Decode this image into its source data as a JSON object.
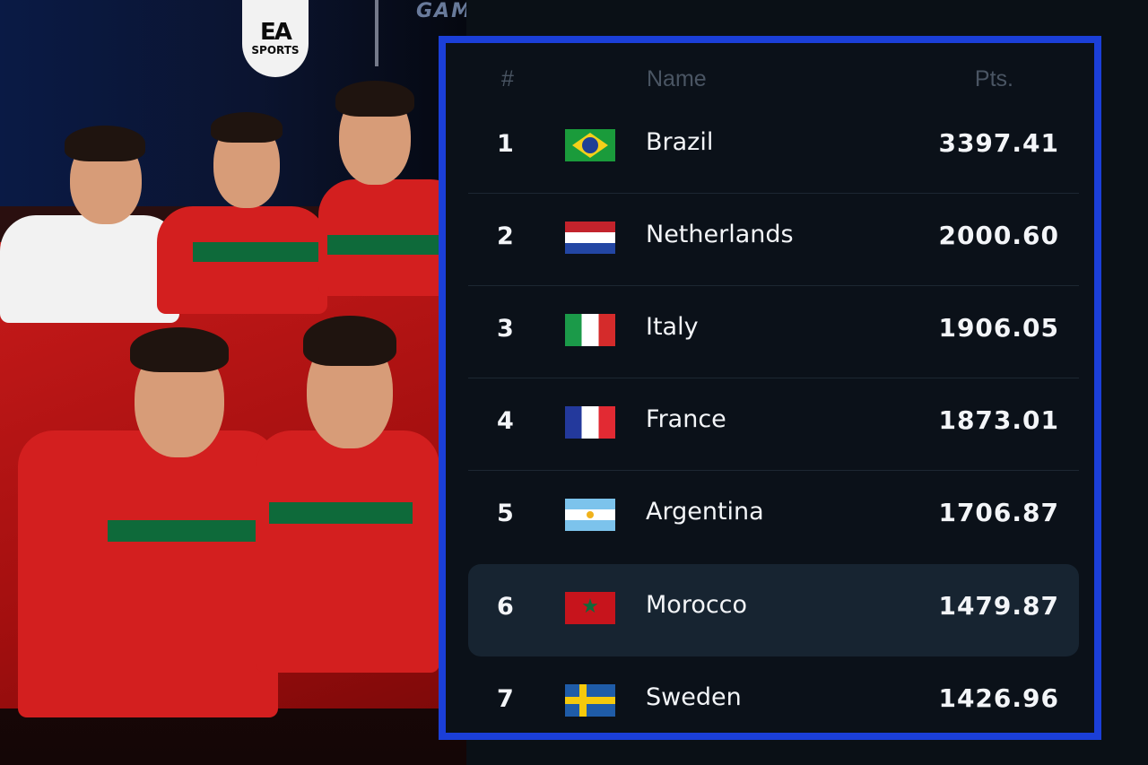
{
  "photo": {
    "logo_top": "EA",
    "logo_bottom": "SPORTS",
    "banner_text": "GAMING"
  },
  "leaderboard": {
    "columns": {
      "rank": "#",
      "name": "Name",
      "points": "Pts."
    },
    "accent_color": "#1b3fd8",
    "highlight_row": 6,
    "rows": [
      {
        "rank": "1",
        "country": "Brazil",
        "flag": "brazil-flag-icon",
        "points": "3397.41"
      },
      {
        "rank": "2",
        "country": "Netherlands",
        "flag": "netherlands-flag-icon",
        "points": "2000.60"
      },
      {
        "rank": "3",
        "country": "Italy",
        "flag": "italy-flag-icon",
        "points": "1906.05"
      },
      {
        "rank": "4",
        "country": "France",
        "flag": "france-flag-icon",
        "points": "1873.01"
      },
      {
        "rank": "5",
        "country": "Argentina",
        "flag": "argentina-flag-icon",
        "points": "1706.87"
      },
      {
        "rank": "6",
        "country": "Morocco",
        "flag": "morocco-flag-icon",
        "points": "1479.87"
      },
      {
        "rank": "7",
        "country": "Sweden",
        "flag": "sweden-flag-icon",
        "points": "1426.96"
      }
    ]
  }
}
